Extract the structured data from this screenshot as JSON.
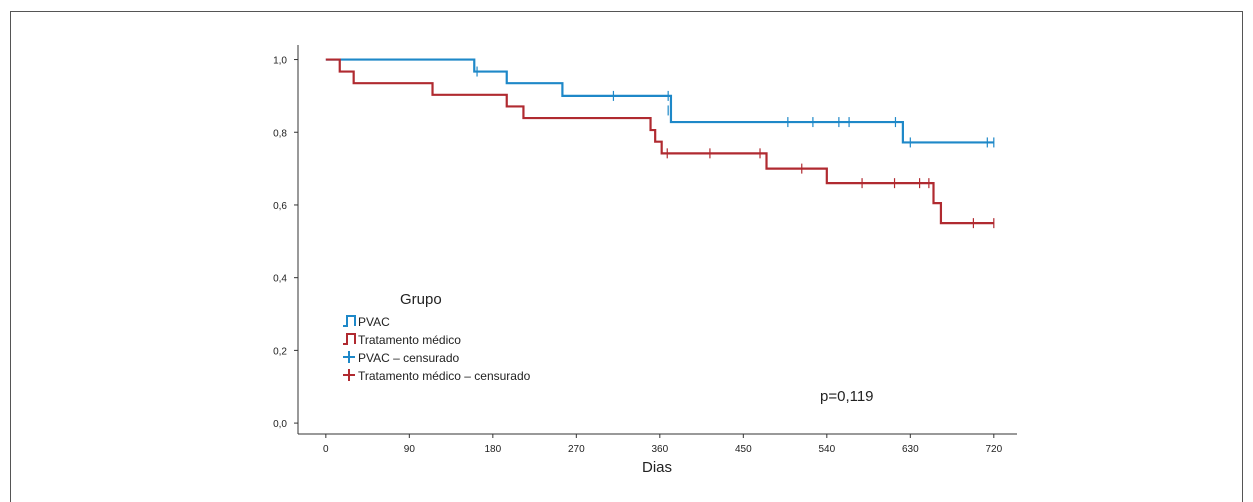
{
  "chart_data": {
    "type": "line",
    "title": "",
    "xlabel": "Dias",
    "ylabel": "",
    "xlim": [
      -30,
      745
    ],
    "ylim": [
      -0.03,
      1.04
    ],
    "x_ticks": [
      0,
      90,
      180,
      270,
      360,
      450,
      540,
      630,
      720
    ],
    "x_tick_labels": [
      "0",
      "90",
      "180",
      "270",
      "360",
      "450",
      "540",
      "630",
      "720"
    ],
    "y_ticks": [
      0.0,
      0.2,
      0.4,
      0.6,
      0.8,
      1.0
    ],
    "y_tick_labels": [
      "0,0",
      "0,2",
      "0,4",
      "0,6",
      "0,8",
      "1,0"
    ],
    "grid": false,
    "legend": {
      "title": "Grupo",
      "placement": "lower-left",
      "entries": [
        "PVAC",
        "Tratamento médico",
        "PVAC – censurado",
        "Tratamento médico – censurado"
      ]
    },
    "annotation": "p=0,119",
    "series": [
      {
        "name": "PVAC",
        "color": "#1e88c8",
        "steps": [
          [
            0,
            1.0
          ],
          [
            160,
            0.967
          ],
          [
            195,
            0.935
          ],
          [
            255,
            0.9
          ],
          [
            372,
            0.828
          ],
          [
            622,
            0.772
          ],
          [
            720,
            0.772
          ]
        ],
        "censored": [
          [
            163,
            0.967
          ],
          [
            310,
            0.9
          ],
          [
            369,
            0.9
          ],
          [
            369,
            0.86
          ],
          [
            498,
            0.828
          ],
          [
            525,
            0.828
          ],
          [
            553,
            0.828
          ],
          [
            564,
            0.828
          ],
          [
            614,
            0.828
          ],
          [
            630,
            0.772
          ],
          [
            713,
            0.772
          ],
          [
            720,
            0.772
          ]
        ]
      },
      {
        "name": "Tratamento médico",
        "color": "#b02a30",
        "steps": [
          [
            0,
            1.0
          ],
          [
            15,
            0.967
          ],
          [
            30,
            0.935
          ],
          [
            115,
            0.903
          ],
          [
            195,
            0.871
          ],
          [
            213,
            0.839
          ],
          [
            350,
            0.806
          ],
          [
            355,
            0.774
          ],
          [
            362,
            0.742
          ],
          [
            475,
            0.7
          ],
          [
            540,
            0.66
          ],
          [
            655,
            0.605
          ],
          [
            663,
            0.55
          ],
          [
            720,
            0.55
          ]
        ],
        "censored": [
          [
            368,
            0.742
          ],
          [
            414,
            0.742
          ],
          [
            468,
            0.742
          ],
          [
            513,
            0.7
          ],
          [
            578,
            0.66
          ],
          [
            613,
            0.66
          ],
          [
            640,
            0.66
          ],
          [
            650,
            0.66
          ],
          [
            698,
            0.55
          ],
          [
            720,
            0.55
          ]
        ]
      }
    ]
  }
}
